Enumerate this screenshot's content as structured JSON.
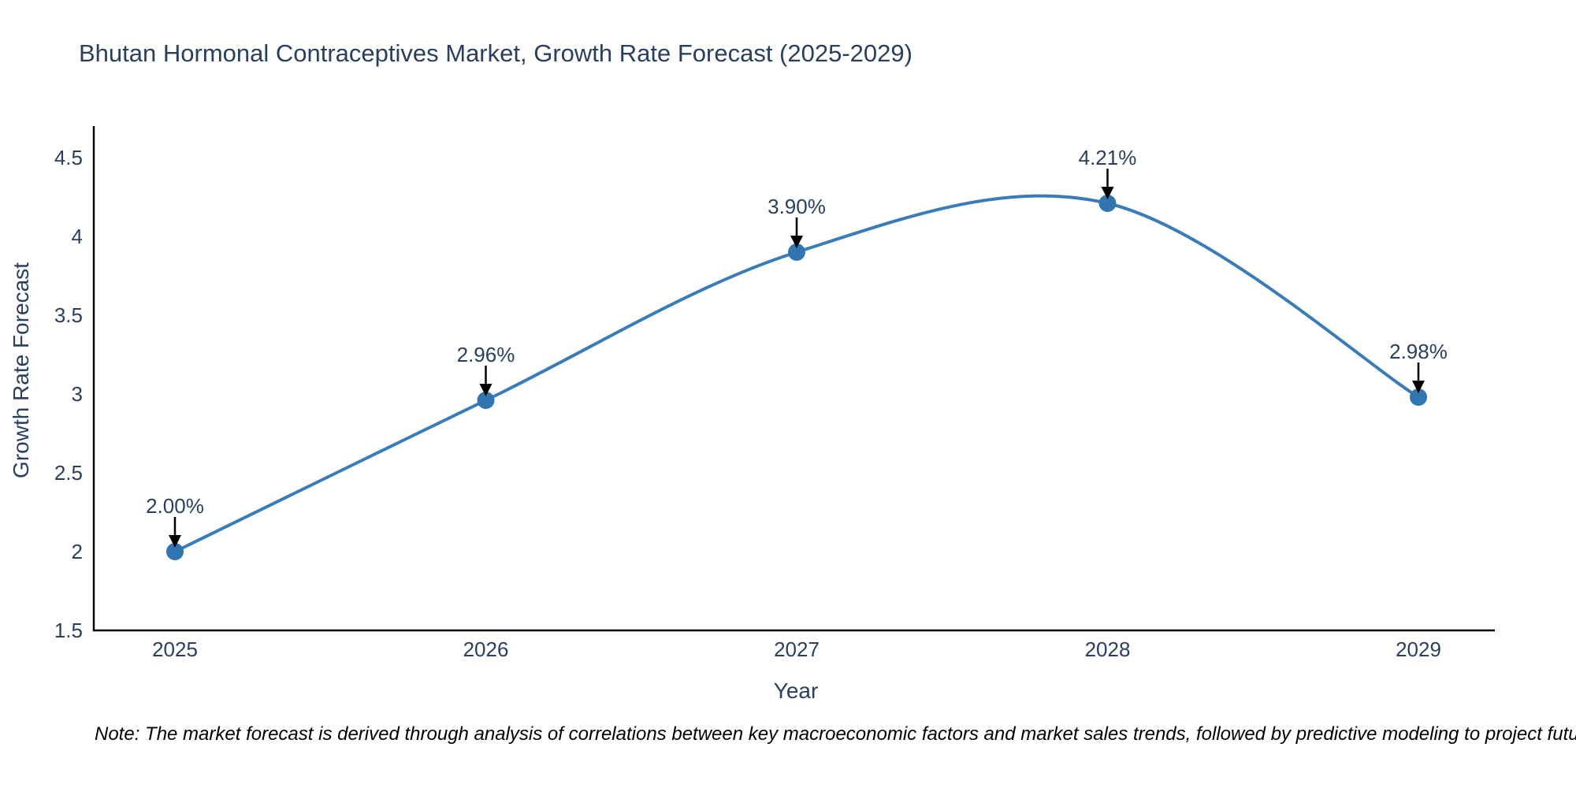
{
  "title": "Bhutan Hormonal Contraceptives Market, Growth Rate Forecast (2025-2029)",
  "note": "Note: The market forecast is derived through analysis of correlations between key macroeconomic factors and market sales trends, followed by predictive modeling to project future sales",
  "chart_data": {
    "type": "line",
    "title": "Bhutan Hormonal Contraceptives Market, Growth Rate Forecast (2025-2029)",
    "xlabel": "Year",
    "ylabel": "Growth Rate Forecast",
    "categories": [
      "2025",
      "2026",
      "2027",
      "2028",
      "2029"
    ],
    "series": [
      {
        "name": "Growth Rate Forecast",
        "values": [
          2.0,
          2.96,
          3.9,
          4.21,
          2.98
        ]
      }
    ],
    "point_labels": [
      "2.00%",
      "2.96%",
      "3.90%",
      "4.21%",
      "2.98%"
    ],
    "yticks": [
      1.5,
      2,
      2.5,
      3,
      3.5,
      4,
      4.5
    ],
    "ylim": [
      1.5,
      4.7
    ],
    "line_shape": "spline",
    "grid": false,
    "legend_position": "none",
    "annotations": "arrow-down-to-point",
    "colors": {
      "line": "#3a7cb8",
      "marker": "#3276b1",
      "axis_line": "#000000",
      "tick_text": "#2a3f5f",
      "annotation_text": "#2a3f5f",
      "arrow": "#000000",
      "note_text": "#000000",
      "background": "#ffffff"
    }
  }
}
